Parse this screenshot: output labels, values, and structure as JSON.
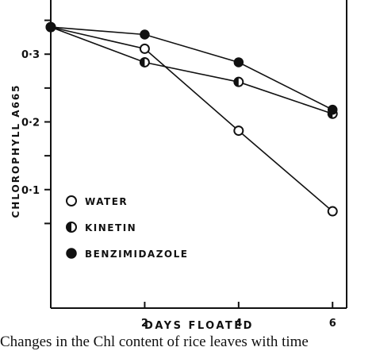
{
  "chart_data": {
    "type": "line",
    "xlabel": "DAYS FLOATED",
    "ylabel": "CHLOROPHYLL A665",
    "xlim": [
      0,
      6.3
    ],
    "ylim": [
      -0.075,
      0.38
    ],
    "x_ticks": [
      2,
      4,
      6
    ],
    "x_tick_labels": [
      "2",
      "4",
      "6"
    ],
    "y_ticks": [
      0.05,
      0.1,
      0.15,
      0.2,
      0.25,
      0.3,
      0.35
    ],
    "y_tick_labels": [
      {
        "value": 0.1,
        "label": "0·1"
      },
      {
        "value": 0.2,
        "label": "0·2"
      },
      {
        "value": 0.3,
        "label": "0·3"
      }
    ],
    "grid": false,
    "legend_position": "lower-left",
    "series": [
      {
        "name": "WATER",
        "marker": "open-circle",
        "x": [
          0,
          2,
          4,
          6
        ],
        "y": [
          0.34,
          0.308,
          0.187,
          0.068
        ]
      },
      {
        "name": "KINETIN",
        "marker": "half-filled-circle",
        "x": [
          0,
          2,
          4,
          6
        ],
        "y": [
          0.34,
          0.288,
          0.259,
          0.212
        ]
      },
      {
        "name": "BENZIMIDAZOLE",
        "marker": "filled-circle",
        "x": [
          0,
          2,
          4,
          6
        ],
        "y": [
          0.34,
          0.329,
          0.288,
          0.218
        ]
      }
    ]
  },
  "caption": "Changes in the Chl content of rice leaves with time"
}
